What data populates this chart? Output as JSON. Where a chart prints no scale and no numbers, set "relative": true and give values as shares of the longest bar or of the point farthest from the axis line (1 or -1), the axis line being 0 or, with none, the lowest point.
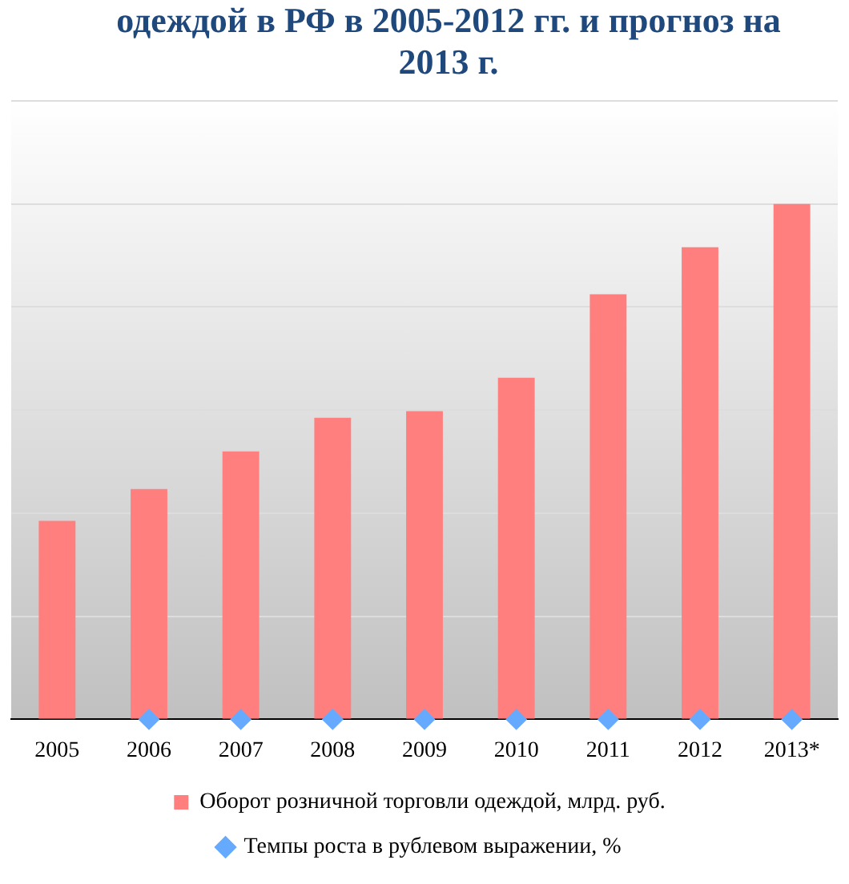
{
  "chart_data": {
    "type": "bar",
    "title": "одеждой в РФ в 2005-2012 гг. и прогноз на 2013 г.",
    "categories": [
      "2005",
      "2006",
      "2007",
      "2008",
      "2009",
      "2010",
      "2011",
      "2012",
      "2013*"
    ],
    "relative": true,
    "grid": "y",
    "legend": "bottom",
    "marker": "diamond",
    "series": [
      {
        "name": "Оборот розничной торговли одеждой, млрд. руб.",
        "color": "#ff7f7f",
        "values": [
          0.385,
          0.447,
          0.52,
          0.585,
          0.598,
          0.663,
          0.825,
          0.916,
          1
        ]
      },
      {
        "name": "Темпы роста в рублевом выражении, %",
        "type": "scatter",
        "color": "#66aaff",
        "values": [
          null,
          0,
          0,
          0,
          0,
          0,
          0,
          0,
          0
        ]
      }
    ]
  }
}
